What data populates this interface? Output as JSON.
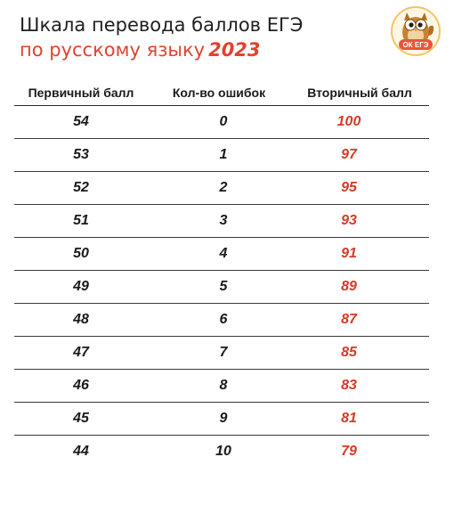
{
  "title": {
    "line1": "Шкала перевода баллов ЕГЭ",
    "line2": "по русскому языку",
    "year": "2023"
  },
  "logo": {
    "text": "ОК ЕГЭ",
    "icon": "owl-icon",
    "colors": {
      "circle": "#e8553a",
      "owl": "#c9842f",
      "ring": "#f2c46a"
    }
  },
  "colors": {
    "accent": "#e0432e",
    "secondary_score": "#d63a26",
    "text": "#1a1a1a"
  },
  "table": {
    "headers": [
      "Первичный балл",
      "Кол-во ошибок",
      "Вторичный балл"
    ],
    "rows": [
      [
        "54",
        "0",
        "100"
      ],
      [
        "53",
        "1",
        "97"
      ],
      [
        "52",
        "2",
        "95"
      ],
      [
        "51",
        "3",
        "93"
      ],
      [
        "50",
        "4",
        "91"
      ],
      [
        "49",
        "5",
        "89"
      ],
      [
        "48",
        "6",
        "87"
      ],
      [
        "47",
        "7",
        "85"
      ],
      [
        "46",
        "8",
        "83"
      ],
      [
        "45",
        "9",
        "81"
      ],
      [
        "44",
        "10",
        "79"
      ]
    ]
  }
}
